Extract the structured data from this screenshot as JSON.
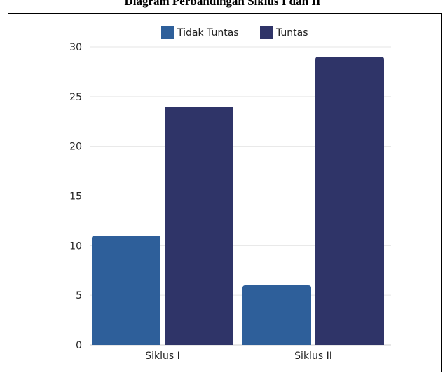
{
  "chart_data": {
    "type": "bar",
    "title": "Diagram Perbandingan Siklus I dan II",
    "categories": [
      "Siklus I",
      "Siklus II"
    ],
    "series": [
      {
        "name": "Tidak Tuntas",
        "values": [
          11,
          6
        ],
        "color": "#2e5f9a"
      },
      {
        "name": "Tuntas",
        "values": [
          24,
          29
        ],
        "color": "#2f3468"
      }
    ],
    "xlabel": "",
    "ylabel": "",
    "ylim": [
      0,
      30
    ],
    "yticks": [
      0,
      5,
      10,
      15,
      20,
      25,
      30
    ],
    "grid": true,
    "legend_position": "top"
  }
}
